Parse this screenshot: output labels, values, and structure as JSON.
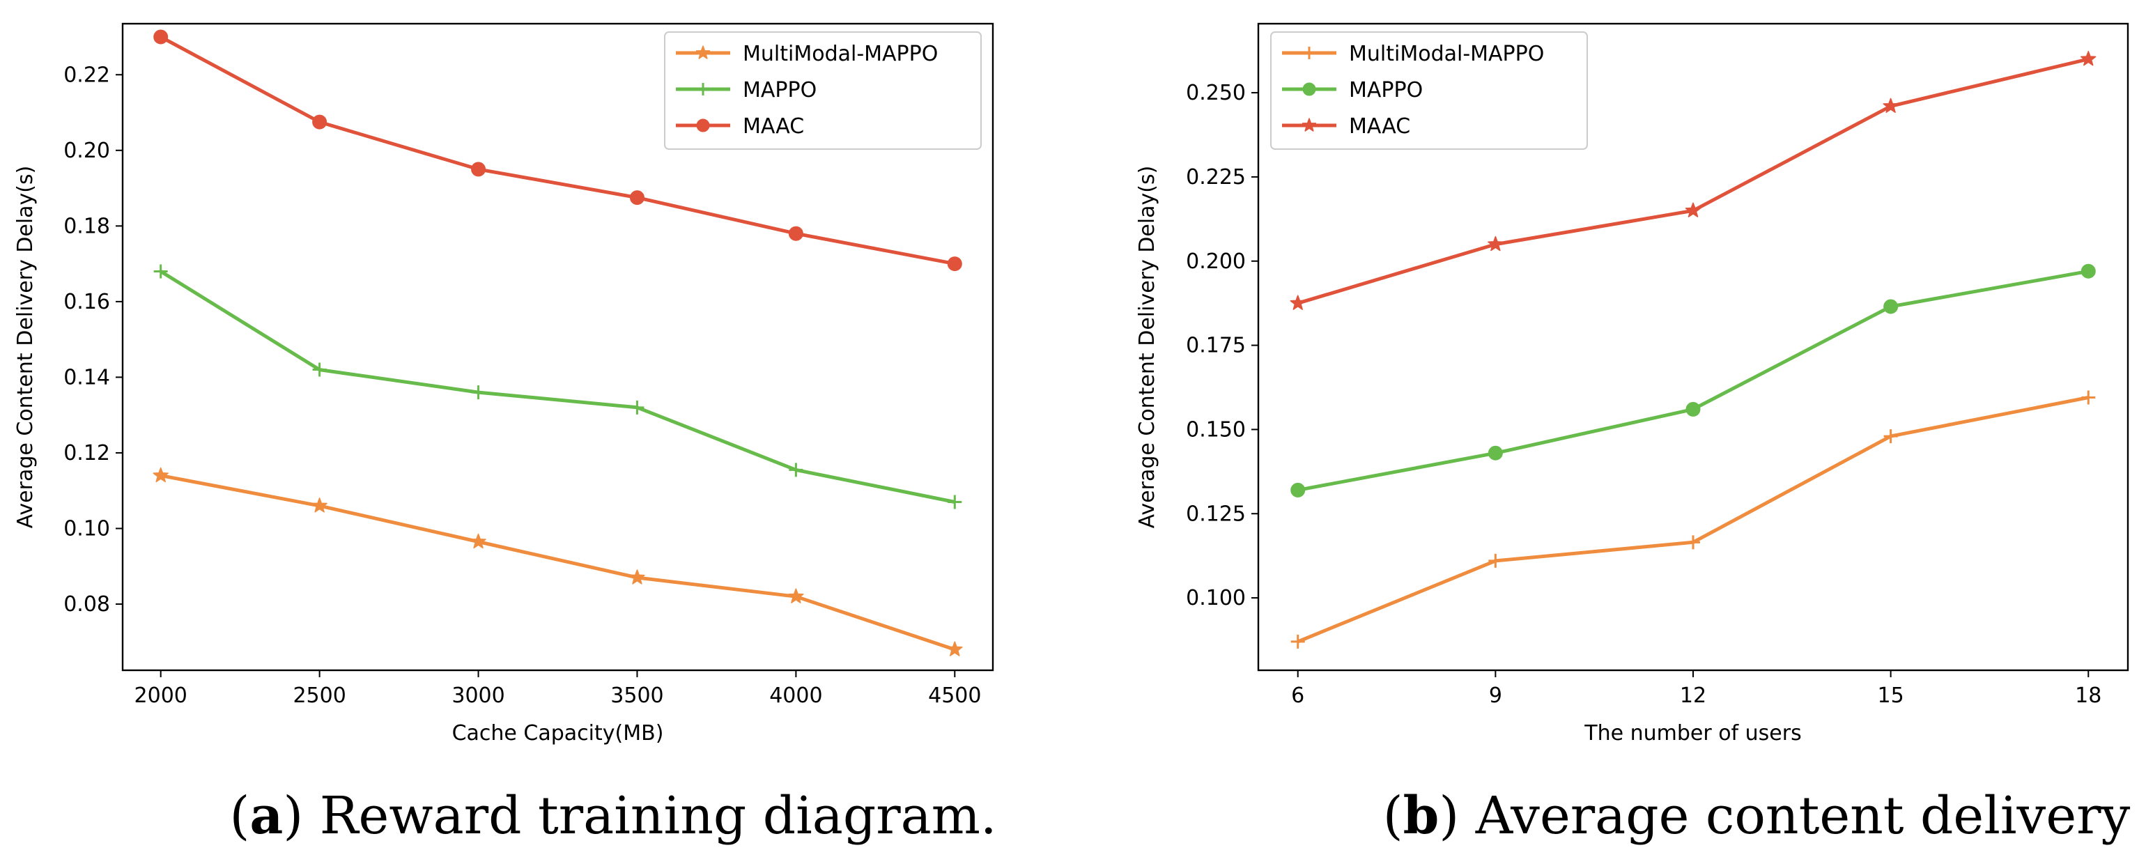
{
  "chart_data": [
    {
      "type": "line",
      "caption_label": "a",
      "caption_text": "Reward training diagram.",
      "xlabel": "Cache Capacity(MB)",
      "ylabel": "Average Content Delivery Delay(s)",
      "x": [
        2000,
        2500,
        3000,
        3500,
        4000,
        4500
      ],
      "xticks": [
        "2000",
        "2500",
        "3000",
        "3500",
        "4000",
        "4500"
      ],
      "yticks": [
        0.08,
        0.1,
        0.12,
        0.14,
        0.16,
        0.18,
        0.2,
        0.22
      ],
      "ytick_labels": [
        "0.08",
        "0.10",
        "0.12",
        "0.14",
        "0.16",
        "0.18",
        "0.20",
        "0.22"
      ],
      "xlim": [
        1880,
        4620
      ],
      "ylim": [
        0.0625,
        0.2335
      ],
      "grid": false,
      "legend_position": "top-right",
      "series": [
        {
          "name": "MultiModal-MAPPO",
          "color": "#ef8c3e",
          "marker": "star",
          "values": [
            0.114,
            0.106,
            0.0965,
            0.087,
            0.082,
            0.068
          ]
        },
        {
          "name": "MAPPO",
          "color": "#66bb4a",
          "marker": "plus",
          "values": [
            0.168,
            0.142,
            0.136,
            0.132,
            0.1155,
            0.107
          ]
        },
        {
          "name": "MAAC",
          "color": "#e0533a",
          "marker": "circle",
          "values": [
            0.23,
            0.2075,
            0.195,
            0.1875,
            0.178,
            0.17
          ]
        }
      ]
    },
    {
      "type": "line",
      "caption_label": "b",
      "caption_text": "Average content delivery delay.",
      "xlabel": "The number of users",
      "ylabel": "Average Content Delivery Delay(s)",
      "x": [
        6,
        9,
        12,
        15,
        18
      ],
      "xticks": [
        "6",
        "9",
        "12",
        "15",
        "18"
      ],
      "yticks": [
        0.1,
        0.125,
        0.15,
        0.175,
        0.2,
        0.225,
        0.25
      ],
      "ytick_labels": [
        "0.100",
        "0.125",
        "0.150",
        "0.175",
        "0.200",
        "0.225",
        "0.250"
      ],
      "xlim": [
        5.4,
        18.6
      ],
      "ylim": [
        0.0785,
        0.2705
      ],
      "grid": false,
      "legend_position": "top-left",
      "series": [
        {
          "name": "MultiModal-MAPPO",
          "color": "#ef8c3e",
          "marker": "plus",
          "values": [
            0.087,
            0.111,
            0.1165,
            0.148,
            0.1595
          ]
        },
        {
          "name": "MAPPO",
          "color": "#66bb4a",
          "marker": "circle",
          "values": [
            0.132,
            0.143,
            0.156,
            0.1865,
            0.197
          ]
        },
        {
          "name": "MAAC",
          "color": "#e0533a",
          "marker": "star",
          "values": [
            0.1875,
            0.205,
            0.215,
            0.246,
            0.26
          ]
        }
      ]
    }
  ]
}
